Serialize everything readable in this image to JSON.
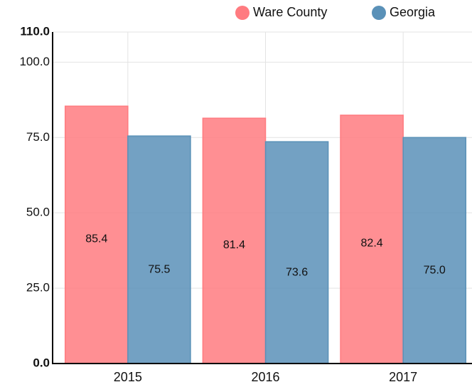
{
  "chart_data": {
    "type": "bar",
    "categories": [
      "2015",
      "2016",
      "2017"
    ],
    "series": [
      {
        "name": "Ware County",
        "color": "#ff7b80",
        "values": [
          85.4,
          81.4,
          82.4
        ]
      },
      {
        "name": "Georgia",
        "color": "#5a91b8",
        "values": [
          75.5,
          73.6,
          75.0
        ],
        "value_labels": [
          "75.5",
          "73.6",
          "75.0"
        ]
      }
    ],
    "ylim": [
      0,
      110
    ],
    "yticks": [
      {
        "value": 0,
        "label": "0.0"
      },
      {
        "value": 25,
        "label": "25.0"
      },
      {
        "value": 50,
        "label": "50.0"
      },
      {
        "value": 75,
        "label": "75.0"
      },
      {
        "value": 100,
        "label": "100.0"
      },
      {
        "value": 110,
        "label": "110.0"
      }
    ],
    "grid": true,
    "legend": "top-right"
  }
}
